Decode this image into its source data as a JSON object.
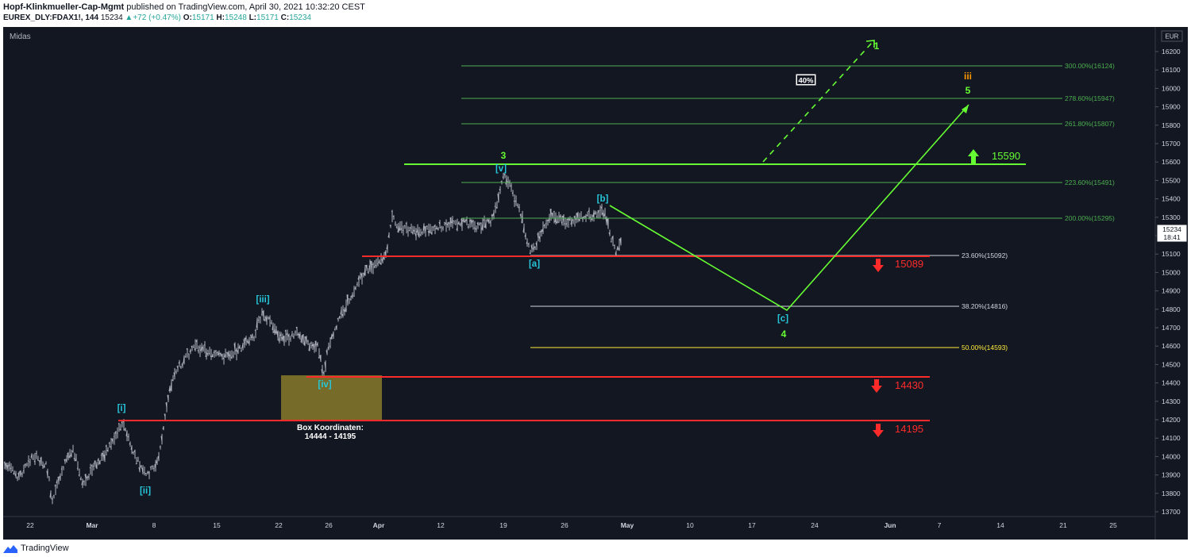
{
  "header": {
    "author": "Hopf-Klinkmueller-Cap-Mgmt",
    "published": "published on TradingView.com, April 30, 2021 10:32:20 CEST",
    "symbol": "EUREX_DLY:FDAX1!, 144",
    "last": "15234",
    "change": "+72 (+0.47%)",
    "ohlc": [
      {
        "label": "O:",
        "value": "15171"
      },
      {
        "label": "H:",
        "value": "15248"
      },
      {
        "label": "L:",
        "value": "15171"
      },
      {
        "label": "C:",
        "value": "15234"
      }
    ]
  },
  "chart": {
    "indicator_label": "Midas",
    "currency": "EUR",
    "price_tag": {
      "price": "15234",
      "time": "18:41"
    },
    "y_ticks": [
      "16200",
      "16100",
      "16000",
      "15900",
      "15800",
      "15700",
      "15600",
      "15500",
      "15400",
      "15300",
      "15200",
      "15100",
      "15000",
      "14900",
      "14800",
      "14700",
      "14600",
      "14500",
      "14400",
      "14300",
      "14200",
      "14100",
      "14000",
      "13900",
      "13800",
      "13700"
    ],
    "x_ticks": [
      "22",
      "Mar",
      "8",
      "15",
      "22",
      "26",
      "Apr",
      "12",
      "19",
      "26",
      "May",
      "10",
      "17",
      "24",
      "Jun",
      "7",
      "14",
      "21",
      "25"
    ],
    "fib_levels": [
      {
        "label": "300.00%(16124)",
        "color": "#4caf50"
      },
      {
        "label": "278.60%(15947)",
        "color": "#4caf50"
      },
      {
        "label": "261.80%(15807)",
        "color": "#4caf50"
      },
      {
        "label": "223.60%(15491)",
        "color": "#4caf50"
      },
      {
        "label": "200.00%(15295)",
        "color": "#4caf50"
      },
      {
        "label": "23.60%(15092)",
        "color": "#d1d4dc"
      },
      {
        "label": "38.20%(14816)",
        "color": "#d1d4dc"
      },
      {
        "label": "50.00%(14593)",
        "color": "#ffeb3b"
      }
    ],
    "wave_labels": [
      "[i]",
      "[ii]",
      "[iii]",
      "[iv]",
      "[v]",
      "3",
      "[a]",
      "[b]",
      "[c]",
      "4",
      "5",
      "iii",
      "1"
    ],
    "levels": [
      {
        "value": "15590",
        "direction": "up",
        "color": "#66ff33"
      },
      {
        "value": "15089",
        "direction": "down",
        "color": "#ff2b2b"
      },
      {
        "value": "14430",
        "direction": "down",
        "color": "#ff2b2b"
      },
      {
        "value": "14195",
        "direction": "down",
        "color": "#ff2b2b"
      }
    ],
    "probability_label": "40%",
    "box_caption": [
      "Box Koordinaten:",
      "14444 - 14195"
    ],
    "box_color": "#8a7a2a",
    "accent_color": "#66ff33",
    "wave_color": "#26c6da"
  },
  "footer": {
    "brand": "TradingView",
    "logo_icon": "tradingview-logo-icon"
  }
}
